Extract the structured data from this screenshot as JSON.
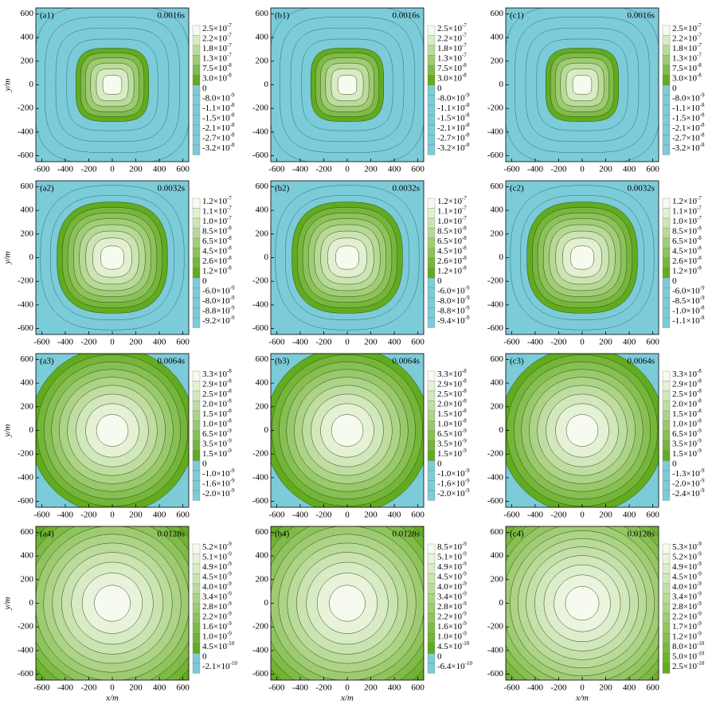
{
  "chart_data": [
    {
      "type": "contour",
      "label": "(a1)",
      "time": "0.0016s",
      "ylabel": "y/m",
      "xlim": [
        -650,
        650
      ],
      "ylim": [
        -650,
        650
      ],
      "xticks": [
        -600,
        -400,
        -200,
        0,
        200,
        400,
        600
      ],
      "yticks": [
        -600,
        -400,
        -200,
        0,
        200,
        400,
        600
      ],
      "colors": [
        "#f7fbef",
        "#62ab1f",
        "#7ccbd8"
      ],
      "levels": [
        2.5e-07,
        2.2e-07,
        1.8e-07,
        1.3e-07,
        7.5e-08,
        3e-08,
        0,
        -8e-09,
        -1.1e-08,
        -1.5e-08,
        -2.1e-08,
        -2.7e-08,
        -3.2e-08
      ],
      "level_labels": [
        [
          "2.5×10",
          "-7"
        ],
        [
          "2.2×10",
          "-7"
        ],
        [
          "1.8×10",
          "-7"
        ],
        [
          "1.3×10",
          "-7"
        ],
        [
          "7.5×10",
          "-8"
        ],
        [
          "3.0×10",
          "-8"
        ],
        [
          "0"
        ],
        [
          "-8.0×10",
          "-9"
        ],
        [
          "-1.1×10",
          "-8"
        ],
        [
          "-1.5×10",
          "-8"
        ],
        [
          "-2.1×10",
          "-8"
        ],
        [
          "-2.7×10",
          "-8"
        ],
        [
          "-3.2×10",
          "-8"
        ]
      ]
    },
    {
      "type": "contour",
      "label": "(b1)",
      "time": "0.0016s",
      "xlim": [
        -650,
        650
      ],
      "ylim": [
        -650,
        650
      ],
      "xticks": [
        -600,
        -400,
        -200,
        0,
        200,
        400,
        600
      ],
      "yticks": [
        -600,
        -400,
        -200,
        0,
        200,
        400,
        600
      ],
      "colors": [
        "#f7fbef",
        "#62ab1f",
        "#7ccbd8"
      ],
      "levels": [
        2.5e-07,
        2.2e-07,
        1.8e-07,
        1.3e-07,
        7.5e-08,
        3e-08,
        0,
        -8e-09,
        -1.1e-08,
        -1.5e-08,
        -2.1e-08,
        -2.7e-08,
        -3.2e-08
      ],
      "level_labels": [
        [
          "2.5×10",
          "-7"
        ],
        [
          "2.2×10",
          "-7"
        ],
        [
          "1.8×10",
          "-7"
        ],
        [
          "1.3×10",
          "-7"
        ],
        [
          "7.5×10",
          "-8"
        ],
        [
          "3.0×10",
          "-8"
        ],
        [
          "0"
        ],
        [
          "-8.0×10",
          "-9"
        ],
        [
          "-1.1×10",
          "-8"
        ],
        [
          "-1.5×10",
          "-8"
        ],
        [
          "-2.1×10",
          "-8"
        ],
        [
          "-2.7×10",
          "-8"
        ],
        [
          "-3.2×10",
          "-8"
        ]
      ]
    },
    {
      "type": "contour",
      "label": "(c1)",
      "time": "0.0016s",
      "xlim": [
        -650,
        650
      ],
      "ylim": [
        -650,
        650
      ],
      "xticks": [
        -600,
        -400,
        -200,
        0,
        200,
        400,
        600
      ],
      "yticks": [
        -600,
        -400,
        -200,
        0,
        200,
        400,
        600
      ],
      "colors": [
        "#f7fbef",
        "#62ab1f",
        "#7ccbd8"
      ],
      "levels": [
        2.5e-07,
        2.2e-07,
        1.8e-07,
        1.3e-07,
        7.5e-08,
        3e-08,
        0,
        -8e-09,
        -1.1e-08,
        -1.5e-08,
        -2.1e-08,
        -2.7e-08,
        -3.2e-08
      ],
      "level_labels": [
        [
          "2.5×10",
          "-7"
        ],
        [
          "2.2×10",
          "-7"
        ],
        [
          "1.8×10",
          "-7"
        ],
        [
          "1.3×10",
          "-7"
        ],
        [
          "7.5×10",
          "-8"
        ],
        [
          "3.0×10",
          "-8"
        ],
        [
          "0"
        ],
        [
          "-8.0×10",
          "-9"
        ],
        [
          "-1.1×10",
          "-8"
        ],
        [
          "-1.5×10",
          "-8"
        ],
        [
          "-2.1×10",
          "-8"
        ],
        [
          "-2.7×10",
          "-8"
        ],
        [
          "-3.2×10",
          "-8"
        ]
      ]
    },
    {
      "type": "contour",
      "label": "(a2)",
      "time": "0.0032s",
      "ylabel": "y/m",
      "xlim": [
        -650,
        650
      ],
      "ylim": [
        -650,
        650
      ],
      "xticks": [
        -600,
        -400,
        -200,
        0,
        200,
        400,
        600
      ],
      "yticks": [
        -600,
        -400,
        -200,
        0,
        200,
        400,
        600
      ],
      "colors": [
        "#f7fbef",
        "#62ab1f",
        "#7ccbd8"
      ],
      "levels": [
        1.2e-07,
        1.1e-07,
        1e-07,
        8.5e-08,
        6.5e-08,
        4.5e-08,
        2.6e-08,
        1.2e-08,
        0,
        -6e-09,
        -8e-09,
        -8.8e-09,
        -9.2e-09
      ],
      "level_labels": [
        [
          "1.2×10",
          "-7"
        ],
        [
          "1.1×10",
          "-7"
        ],
        [
          "1.0×10",
          "-7"
        ],
        [
          "8.5×10",
          "-8"
        ],
        [
          "6.5×10",
          "-8"
        ],
        [
          "4.5×10",
          "-8"
        ],
        [
          "2.6×10",
          "-8"
        ],
        [
          "1.2×10",
          "-8"
        ],
        [
          "0"
        ],
        [
          "-6.0×10",
          "-9"
        ],
        [
          "-8.0×10",
          "-9"
        ],
        [
          "-8.8×10",
          "-9"
        ],
        [
          "-9.2×10",
          "-9"
        ]
      ]
    },
    {
      "type": "contour",
      "label": "(b2)",
      "time": "0.0032s",
      "xlim": [
        -650,
        650
      ],
      "ylim": [
        -650,
        650
      ],
      "xticks": [
        -600,
        -400,
        -200,
        0,
        200,
        400,
        600
      ],
      "yticks": [
        -600,
        -400,
        -200,
        0,
        200,
        400,
        600
      ],
      "colors": [
        "#f7fbef",
        "#62ab1f",
        "#7ccbd8"
      ],
      "levels": [
        1.2e-07,
        1.1e-07,
        1e-07,
        8.5e-08,
        6.5e-08,
        4.5e-08,
        2.6e-08,
        1.2e-08,
        0,
        -6e-09,
        -8e-09,
        -8.8e-09,
        -9.4e-09
      ],
      "level_labels": [
        [
          "1.2×10",
          "-7"
        ],
        [
          "1.1×10",
          "-7"
        ],
        [
          "1.0×10",
          "-7"
        ],
        [
          "8.5×10",
          "-8"
        ],
        [
          "6.5×10",
          "-8"
        ],
        [
          "4.5×10",
          "-8"
        ],
        [
          "2.6×10",
          "-8"
        ],
        [
          "1.2×10",
          "-8"
        ],
        [
          "0"
        ],
        [
          "-6.0×10",
          "-9"
        ],
        [
          "-8.0×10",
          "-9"
        ],
        [
          "-8.8×10",
          "-9"
        ],
        [
          "-9.4×10",
          "-9"
        ]
      ]
    },
    {
      "type": "contour",
      "label": "(c2)",
      "time": "0.0032s",
      "xlim": [
        -650,
        650
      ],
      "ylim": [
        -650,
        650
      ],
      "xticks": [
        -600,
        -400,
        -200,
        0,
        200,
        400,
        600
      ],
      "yticks": [
        -600,
        -400,
        -200,
        0,
        200,
        400,
        600
      ],
      "colors": [
        "#f7fbef",
        "#62ab1f",
        "#7ccbd8"
      ],
      "levels": [
        1.2e-07,
        1.1e-07,
        1e-07,
        8.5e-08,
        6.5e-08,
        4.5e-08,
        2.6e-08,
        1.2e-08,
        0,
        -6e-09,
        -8.5e-09,
        -1e-08,
        -1.1e-08
      ],
      "level_labels": [
        [
          "1.2×10",
          "-7"
        ],
        [
          "1.1×10",
          "-7"
        ],
        [
          "1.0×10",
          "-7"
        ],
        [
          "8.5×10",
          "-8"
        ],
        [
          "6.5×10",
          "-8"
        ],
        [
          "4.5×10",
          "-8"
        ],
        [
          "2.6×10",
          "-8"
        ],
        [
          "1.2×10",
          "-8"
        ],
        [
          "0"
        ],
        [
          "-6.0×10",
          "-9"
        ],
        [
          "-8.5×10",
          "-9"
        ],
        [
          "-1.0×10",
          "-8"
        ],
        [
          "-1.1×10",
          "-8"
        ]
      ]
    },
    {
      "type": "contour",
      "label": "(a3)",
      "time": "0.0064s",
      "ylabel": "y/m",
      "xlim": [
        -650,
        650
      ],
      "ylim": [
        -650,
        650
      ],
      "xticks": [
        -600,
        -400,
        -200,
        0,
        200,
        400,
        600
      ],
      "yticks": [
        -600,
        -400,
        -200,
        0,
        200,
        400,
        600
      ],
      "colors": [
        "#f7fbef",
        "#62ab1f",
        "#7ccbd8"
      ],
      "levels": [
        3.3e-08,
        2.9e-08,
        2.5e-08,
        2e-08,
        1.5e-08,
        1e-08,
        6.5e-09,
        3.5e-09,
        1.5e-09,
        0,
        -1e-09,
        -1.6e-09,
        -2e-09
      ],
      "level_labels": [
        [
          "3.3×10",
          "-8"
        ],
        [
          "2.9×10",
          "-8"
        ],
        [
          "2.5×10",
          "-8"
        ],
        [
          "2.0×10",
          "-8"
        ],
        [
          "1.5×10",
          "-8"
        ],
        [
          "1.0×10",
          "-8"
        ],
        [
          "6.5×10",
          "-9"
        ],
        [
          "3.5×10",
          "-9"
        ],
        [
          "1.5×10",
          "-9"
        ],
        [
          "0"
        ],
        [
          "-1.0×10",
          "-9"
        ],
        [
          "-1.6×10",
          "-9"
        ],
        [
          "-2.0×10",
          "-9"
        ]
      ]
    },
    {
      "type": "contour",
      "label": "(b3)",
      "time": "0.0064s",
      "xlim": [
        -650,
        650
      ],
      "ylim": [
        -650,
        650
      ],
      "xticks": [
        -600,
        -400,
        -200,
        0,
        200,
        400,
        600
      ],
      "yticks": [
        -600,
        -400,
        -200,
        0,
        200,
        400,
        600
      ],
      "colors": [
        "#f7fbef",
        "#62ab1f",
        "#7ccbd8"
      ],
      "levels": [
        3.3e-08,
        2.9e-08,
        2.5e-08,
        2e-08,
        1.5e-08,
        1e-08,
        6.5e-09,
        3.5e-09,
        1.5e-09,
        0,
        -1e-09,
        -1.6e-09,
        -2e-09
      ],
      "level_labels": [
        [
          "3.3×10",
          "-8"
        ],
        [
          "2.9×10",
          "-8"
        ],
        [
          "2.5×10",
          "-8"
        ],
        [
          "2.0×10",
          "-8"
        ],
        [
          "1.5×10",
          "-8"
        ],
        [
          "1.0×10",
          "-8"
        ],
        [
          "6.5×10",
          "-9"
        ],
        [
          "3.5×10",
          "-9"
        ],
        [
          "1.5×10",
          "-9"
        ],
        [
          "0"
        ],
        [
          "-1.0×10",
          "-9"
        ],
        [
          "-1.6×10",
          "-9"
        ],
        [
          "-2.0×10",
          "-9"
        ]
      ]
    },
    {
      "type": "contour",
      "label": "(c3)",
      "time": "0.0064s",
      "xlim": [
        -650,
        650
      ],
      "ylim": [
        -650,
        650
      ],
      "xticks": [
        -600,
        -400,
        -200,
        0,
        200,
        400,
        600
      ],
      "yticks": [
        -600,
        -400,
        -200,
        0,
        200,
        400,
        600
      ],
      "colors": [
        "#f7fbef",
        "#62ab1f",
        "#7ccbd8"
      ],
      "levels": [
        3.3e-08,
        2.9e-08,
        2.5e-08,
        2e-08,
        1.5e-08,
        1e-08,
        6.5e-09,
        3.5e-09,
        1.5e-09,
        0,
        -1.3e-09,
        -2e-09,
        -2.4e-09
      ],
      "level_labels": [
        [
          "3.3×10",
          "-8"
        ],
        [
          "2.9×10",
          "-8"
        ],
        [
          "2.5×10",
          "-8"
        ],
        [
          "2.0×10",
          "-8"
        ],
        [
          "1.5×10",
          "-8"
        ],
        [
          "1.0×10",
          "-8"
        ],
        [
          "6.5×10",
          "-9"
        ],
        [
          "3.5×10",
          "-9"
        ],
        [
          "1.5×10",
          "-9"
        ],
        [
          "0"
        ],
        [
          "-1.3×10",
          "-9"
        ],
        [
          "-2.0×10",
          "-9"
        ],
        [
          "-2.4×10",
          "-9"
        ]
      ]
    },
    {
      "type": "contour",
      "label": "(a4)",
      "time": "0.0128s",
      "xlabel": "x/m",
      "ylabel": "y/m",
      "xlim": [
        -650,
        650
      ],
      "ylim": [
        -650,
        650
      ],
      "xticks": [
        -600,
        -400,
        -200,
        0,
        200,
        400,
        600
      ],
      "yticks": [
        -600,
        -400,
        -200,
        0,
        200,
        400,
        600
      ],
      "colors": [
        "#f7fbef",
        "#62ab1f",
        "#7ccbd8"
      ],
      "levels": [
        5.2e-09,
        5.1e-09,
        4.9e-09,
        4.5e-09,
        4e-09,
        3.4e-09,
        2.8e-09,
        2.2e-09,
        1.6e-09,
        1e-09,
        4.5e-10,
        0,
        -2.1e-10
      ],
      "level_labels": [
        [
          "5.2×10",
          "-9"
        ],
        [
          "5.1×10",
          "-9"
        ],
        [
          "4.9×10",
          "-9"
        ],
        [
          "4.5×10",
          "-9"
        ],
        [
          "4.0×10",
          "-9"
        ],
        [
          "3.4×10",
          "-9"
        ],
        [
          "2.8×10",
          "-9"
        ],
        [
          "2.2×10",
          "-9"
        ],
        [
          "1.6×10",
          "-9"
        ],
        [
          "1.0×10",
          "-9"
        ],
        [
          "4.5×10",
          "-10"
        ],
        [
          "0"
        ],
        [
          "-2.1×10",
          "-10"
        ]
      ]
    },
    {
      "type": "contour",
      "label": "(b4)",
      "time": "0.0128s",
      "xlabel": "x/m",
      "xlim": [
        -650,
        650
      ],
      "ylim": [
        -650,
        650
      ],
      "xticks": [
        -600,
        -400,
        -200,
        0,
        200,
        400,
        600
      ],
      "yticks": [
        -600,
        -400,
        -200,
        0,
        200,
        400,
        600
      ],
      "colors": [
        "#f7fbef",
        "#62ab1f",
        "#7ccbd8"
      ],
      "levels": [
        8.5e-09,
        5.1e-09,
        4.9e-09,
        4.5e-09,
        4e-09,
        3.4e-09,
        2.8e-09,
        2.2e-09,
        1.6e-09,
        1e-09,
        4.5e-10,
        0,
        -6.4e-10
      ],
      "level_labels": [
        [
          "8.5×10",
          "-9"
        ],
        [
          "5.1×10",
          "-9"
        ],
        [
          "4.9×10",
          "-9"
        ],
        [
          "4.5×10",
          "-9"
        ],
        [
          "4.0×10",
          "-9"
        ],
        [
          "3.4×10",
          "-9"
        ],
        [
          "2.8×10",
          "-9"
        ],
        [
          "2.2×10",
          "-9"
        ],
        [
          "1.6×10",
          "-9"
        ],
        [
          "1.0×10",
          "-9"
        ],
        [
          "4.5×10",
          "-10"
        ],
        [
          "0"
        ],
        [
          "-6.4×10",
          "-10"
        ]
      ]
    },
    {
      "type": "contour",
      "label": "(c4)",
      "time": "0.0128s",
      "xlabel": "x/m",
      "xlim": [
        -650,
        650
      ],
      "ylim": [
        -650,
        650
      ],
      "xticks": [
        -600,
        -400,
        -200,
        0,
        200,
        400,
        600
      ],
      "yticks": [
        -600,
        -400,
        -200,
        0,
        200,
        400,
        600
      ],
      "colors": [
        "#f7fbef",
        "#62ab1f",
        "#7ccbd8"
      ],
      "levels": [
        5.3e-09,
        5.2e-09,
        4.9e-09,
        4.5e-09,
        4e-09,
        3.4e-09,
        2.8e-09,
        2.2e-09,
        1.7e-09,
        1.2e-09,
        8e-10,
        5e-10,
        2.5e-10
      ],
      "level_labels": [
        [
          "5.3×10",
          "-9"
        ],
        [
          "5.2×10",
          "-9"
        ],
        [
          "4.9×10",
          "-9"
        ],
        [
          "4.5×10",
          "-9"
        ],
        [
          "4.0×10",
          "-9"
        ],
        [
          "3.4×10",
          "-9"
        ],
        [
          "2.8×10",
          "-9"
        ],
        [
          "2.2×10",
          "-9"
        ],
        [
          "1.7×10",
          "-9"
        ],
        [
          "1.2×10",
          "-9"
        ],
        [
          "8.0×10",
          "-10"
        ],
        [
          "5.0×10",
          "-10"
        ],
        [
          "2.5×10",
          "-10"
        ]
      ]
    }
  ]
}
